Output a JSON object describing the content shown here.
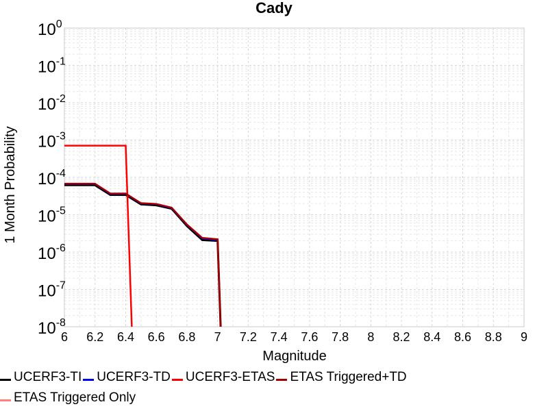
{
  "chart_data": {
    "type": "line",
    "title": "Cady",
    "xlabel": "Magnitude",
    "ylabel": "1 Month Probability",
    "xlim": [
      6,
      9
    ],
    "ylim": [
      1e-08,
      1
    ],
    "yscale": "log",
    "grid": true,
    "legend_position": "bottom",
    "x_ticks": [
      "6",
      "6.2",
      "6.4",
      "6.6",
      "6.8",
      "7",
      "7.2",
      "7.4",
      "7.6",
      "7.8",
      "8",
      "8.2",
      "8.4",
      "8.6",
      "8.8",
      "9"
    ],
    "y_ticks": [
      {
        "base": "10",
        "exp": "0"
      },
      {
        "base": "10",
        "exp": "-1"
      },
      {
        "base": "10",
        "exp": "-2"
      },
      {
        "base": "10",
        "exp": "-3"
      },
      {
        "base": "10",
        "exp": "-4"
      },
      {
        "base": "10",
        "exp": "-5"
      },
      {
        "base": "10",
        "exp": "-6"
      },
      {
        "base": "10",
        "exp": "-7"
      },
      {
        "base": "10",
        "exp": "-8"
      }
    ],
    "series": [
      {
        "name": "UCERF3-TI",
        "color": "#000000",
        "width": 3,
        "x": [
          6.0,
          6.2,
          6.3,
          6.4,
          6.5,
          6.6,
          6.7,
          6.8,
          6.9,
          7.0,
          7.02
        ],
        "y": [
          6.2e-05,
          6.2e-05,
          3.4e-05,
          3.4e-05,
          1.9e-05,
          1.8e-05,
          1.45e-05,
          5e-06,
          2.1e-06,
          2e-06,
          1e-08
        ]
      },
      {
        "name": "UCERF3-TD",
        "color": "#0000ff",
        "width": 2,
        "x": [
          6.0,
          6.2,
          6.3,
          6.4,
          6.5,
          6.6,
          6.7,
          6.8,
          6.9,
          7.0,
          7.02
        ],
        "y": [
          6.6e-05,
          6.6e-05,
          3.6e-05,
          3.6e-05,
          2e-05,
          1.9e-05,
          1.5e-05,
          5.3e-06,
          2.3e-06,
          2.1e-06,
          1e-08
        ]
      },
      {
        "name": "UCERF3-ETAS",
        "color": "#ff0000",
        "width": 2.5,
        "x": [
          6.0,
          6.4,
          6.44
        ],
        "y": [
          0.00071,
          0.00071,
          1e-08
        ]
      },
      {
        "name": "ETAS Triggered+TD",
        "color": "#a50000",
        "width": 2.5,
        "x": [
          6.0,
          6.2,
          6.3,
          6.4,
          6.5,
          6.6,
          6.7,
          6.8,
          6.9,
          7.0,
          7.02
        ],
        "y": [
          6.8e-05,
          6.8e-05,
          3.7e-05,
          3.7e-05,
          2.05e-05,
          1.95e-05,
          1.55e-05,
          5.5e-06,
          2.4e-06,
          2.2e-06,
          1e-08
        ]
      },
      {
        "name": "ETAS Triggered Only",
        "color": "#ff8080",
        "width": 1.5,
        "x": [],
        "y": []
      }
    ]
  },
  "legend": {
    "row1": [
      "UCERF3-TI",
      "UCERF3-TD",
      "UCERF3-ETAS",
      "ETAS Triggered+TD"
    ],
    "row2": [
      "ETAS Triggered Only"
    ]
  }
}
